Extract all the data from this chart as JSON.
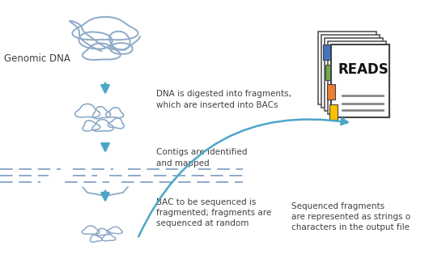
{
  "bg_color": "#ffffff",
  "arrow_color": "#4da6c8",
  "text_color": "#404040",
  "genomic_dna_label": "Genomic DNA",
  "step1_text": "DNA is digested into fragments,\nwhich are inserted into BACs",
  "step2_text": "Contigs are identified\nand mapped",
  "step3_text": "BAC to be sequenced is\nfragmented; fragments are\nsequenced at random",
  "reads_text": "READS",
  "final_text": "Sequenced fragments\nare represented as strings o\ncharacters in the output file",
  "book_colors": [
    "#4472c4",
    "#70ad47",
    "#ed7d31",
    "#ffc000"
  ],
  "dna_color": "#8eaac8",
  "line_color": "#8eaac8"
}
